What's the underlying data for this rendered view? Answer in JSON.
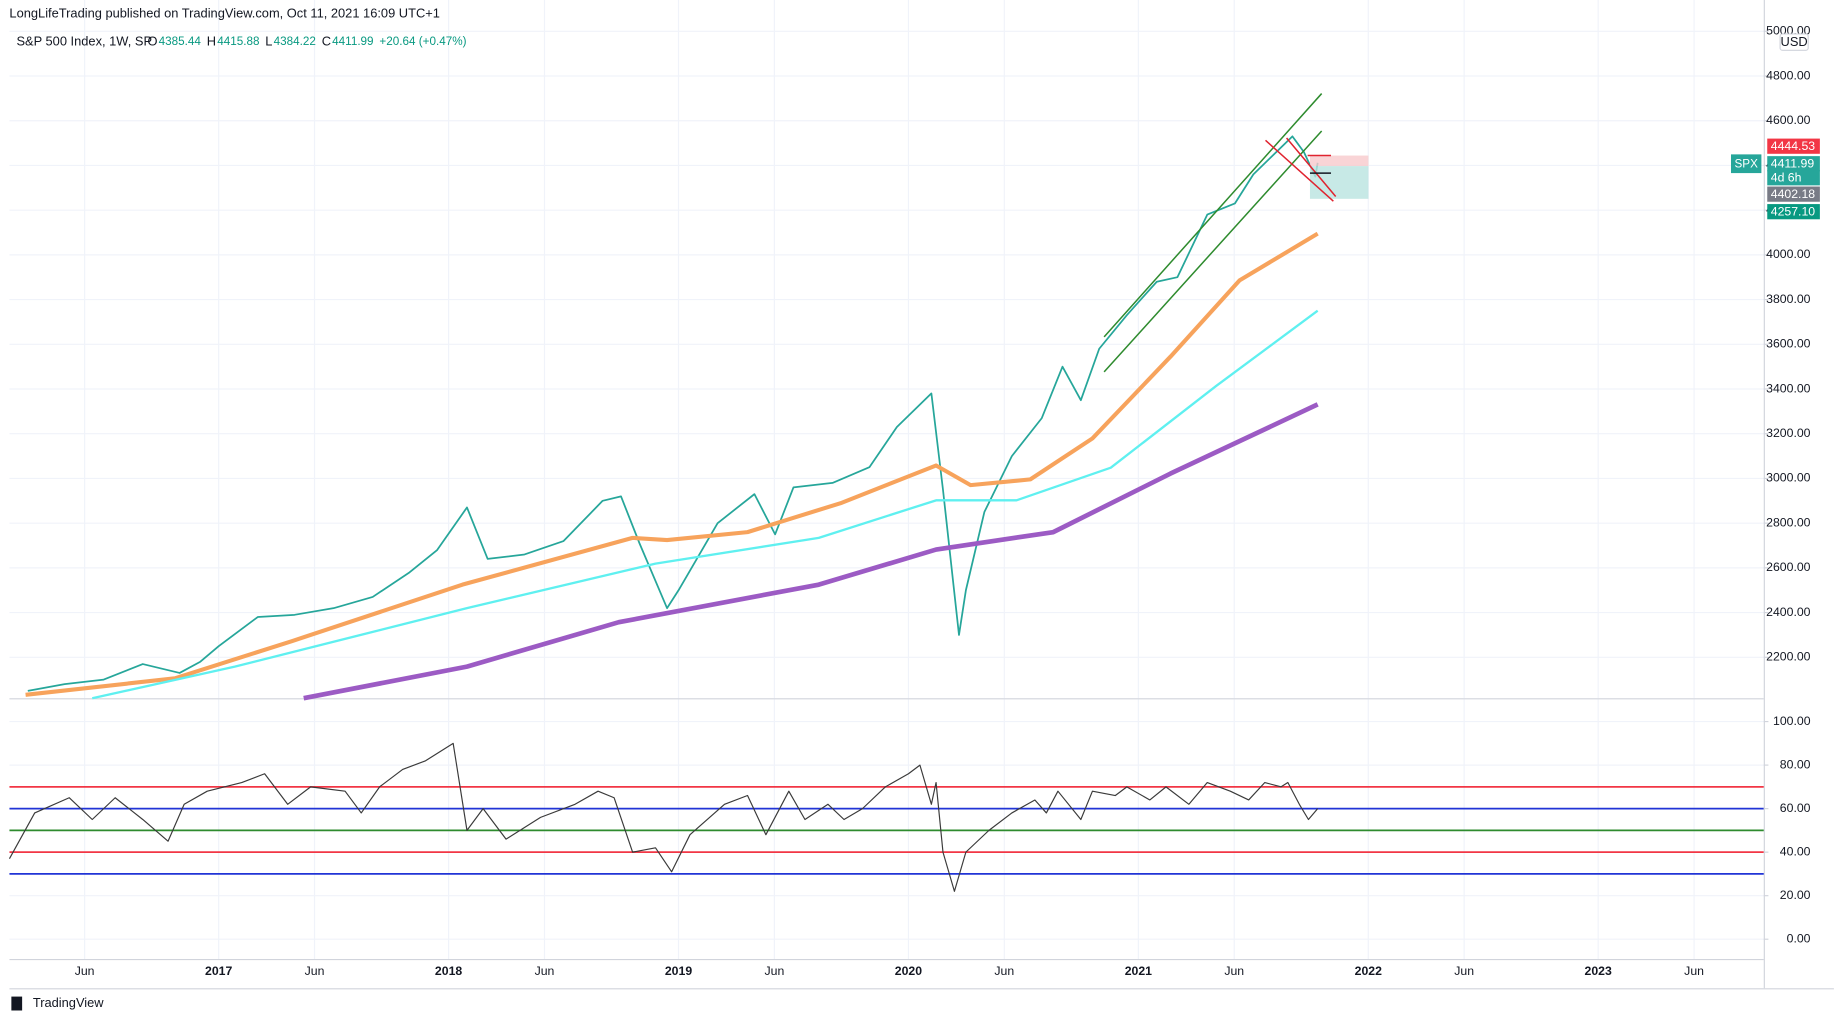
{
  "header": {
    "publisher": "LongLifeTrading published on TradingView.com, Oct 11, 2021 16:09 UTC+1",
    "symbol": "S&P 500 Index, 1W, SP",
    "ohlc": [
      {
        "key": "O",
        "value": "4385.44"
      },
      {
        "key": "H",
        "value": "4415.88"
      },
      {
        "key": "L",
        "value": "4384.22"
      },
      {
        "key": "C",
        "value": "4411.99"
      }
    ],
    "change": "+20.64 (+0.47%)"
  },
  "currency": "USD",
  "footer": "TradingView",
  "symbol_tag": "SPX",
  "price_labels": [
    {
      "text": "4444.53",
      "color": "#f23645"
    },
    {
      "text": "4411.99",
      "color": "#26a69a"
    },
    {
      "text": "4d 6h",
      "color": "#26a69a"
    },
    {
      "text": "4402.18",
      "color": "#787b86"
    },
    {
      "text": "4257.10",
      "color": "#089981"
    }
  ],
  "chart_data": [
    {
      "type": "line",
      "xlim": [
        2016.09,
        2023.72
      ],
      "ylim": [
        2017,
        5140
      ],
      "grid": true,
      "yticks": [
        {
          "value": 2200,
          "label": "2200.00"
        },
        {
          "value": 2400,
          "label": "2400.00"
        },
        {
          "value": 2600,
          "label": "2600.00"
        },
        {
          "value": 2800,
          "label": "2800.00"
        },
        {
          "value": 3000,
          "label": "3000.00"
        },
        {
          "value": 3200,
          "label": "3200.00"
        },
        {
          "value": 3400,
          "label": "3400.00"
        },
        {
          "value": 3600,
          "label": "3600.00"
        },
        {
          "value": 3800,
          "label": "3800.00"
        },
        {
          "value": 4000,
          "label": "4000.00"
        },
        {
          "value": 4200,
          "label": "4200.00"
        },
        {
          "value": 4400,
          "label": "4400.00"
        },
        {
          "value": 4600,
          "label": "4600.00"
        },
        {
          "value": 4800,
          "label": "4800.00"
        },
        {
          "value": 5000,
          "label": "5000.00"
        }
      ],
      "series": [
        {
          "color": "#26a69a",
          "width": 1.5,
          "x": [
            2016.17,
            2016.33,
            2016.5,
            2016.67,
            2016.83,
            2016.92,
            2017.0,
            2017.17,
            2017.33,
            2017.5,
            2017.67,
            2017.83,
            2017.95,
            2018.08,
            2018.17,
            2018.33,
            2018.5,
            2018.67,
            2018.75,
            2018.83,
            2018.95,
            2019.0,
            2019.17,
            2019.33,
            2019.42,
            2019.5,
            2019.67,
            2019.83,
            2019.95,
            2020.1,
            2020.15,
            2020.22,
            2020.25,
            2020.33,
            2020.45,
            2020.58,
            2020.67,
            2020.75,
            2020.83,
            2020.95,
            2021.08,
            2021.17,
            2021.3,
            2021.42,
            2021.5,
            2021.58,
            2021.67,
            2021.72,
            2021.77,
            2021.78
          ],
          "values": [
            2050,
            2080,
            2100,
            2170,
            2130,
            2180,
            2250,
            2380,
            2390,
            2420,
            2470,
            2580,
            2680,
            2870,
            2640,
            2660,
            2720,
            2900,
            2920,
            2710,
            2420,
            2500,
            2800,
            2930,
            2750,
            2960,
            2980,
            3050,
            3230,
            3380,
            2950,
            2300,
            2500,
            2850,
            3100,
            3270,
            3500,
            3350,
            3580,
            3730,
            3880,
            3900,
            4180,
            4230,
            4360,
            4440,
            4530,
            4460,
            4350,
            4412
          ]
        },
        {
          "color": "#f7a35c",
          "width": 3.5,
          "x": [
            2016.16,
            2016.81,
            2017.32,
            2018.06,
            2018.8,
            2018.95,
            2019.3,
            2019.71,
            2020.12,
            2020.27,
            2020.53,
            2020.8,
            2021.14,
            2021.44,
            2021.78
          ],
          "values": [
            2032,
            2106,
            2273,
            2525,
            2734,
            2724,
            2760,
            2891,
            3058,
            2970,
            2996,
            3179,
            3545,
            3886,
            4095
          ]
        },
        {
          "color": "#5ff0f0",
          "width": 2,
          "x": [
            2016.45,
            2017.07,
            2018.08,
            2018.9,
            2019.61,
            2020.12,
            2020.47,
            2020.88,
            2021.34,
            2021.78
          ],
          "values": [
            2017,
            2158,
            2420,
            2619,
            2734,
            2902,
            2902,
            3048,
            3415,
            3750
          ]
        },
        {
          "color": "#9c5bc4",
          "width": 4,
          "x": [
            2017.37,
            2018.08,
            2018.74,
            2019.61,
            2020.12,
            2020.63,
            2021.14,
            2021.78
          ],
          "values": [
            2017,
            2158,
            2357,
            2525,
            2682,
            2760,
            3022,
            3331
          ]
        }
      ]
    },
    {
      "type": "line",
      "xlim": [
        2016.09,
        2023.72
      ],
      "ylim": [
        -9.1,
        110.2
      ],
      "grid": true,
      "yticks": [
        {
          "value": 0,
          "label": "0.00"
        },
        {
          "value": 20,
          "label": "20.00"
        },
        {
          "value": 40,
          "label": "40.00"
        },
        {
          "value": 60,
          "label": "60.00"
        },
        {
          "value": 80,
          "label": "80.00"
        },
        {
          "value": 100,
          "label": "100.00"
        }
      ],
      "xticks": [
        {
          "value": 2016.417,
          "label": "Jun"
        },
        {
          "value": 2017,
          "label": "2017"
        },
        {
          "value": 2017.417,
          "label": "Jun"
        },
        {
          "value": 2018,
          "label": "2018"
        },
        {
          "value": 2018.417,
          "label": "Jun"
        },
        {
          "value": 2019,
          "label": "2019"
        },
        {
          "value": 2019.417,
          "label": "Jun"
        },
        {
          "value": 2020,
          "label": "2020"
        },
        {
          "value": 2020.417,
          "label": "Jun"
        },
        {
          "value": 2021,
          "label": "2021"
        },
        {
          "value": 2021.417,
          "label": "Jun"
        },
        {
          "value": 2022,
          "label": "2022"
        },
        {
          "value": 2022.417,
          "label": "Jun"
        },
        {
          "value": 2023,
          "label": "2023"
        },
        {
          "value": 2023.417,
          "label": "Jun"
        }
      ],
      "levels": [
        {
          "value": 70,
          "color": "#f23645"
        },
        {
          "value": 60,
          "color": "#2134d6"
        },
        {
          "value": 50,
          "color": "#2e8b2e"
        },
        {
          "value": 40,
          "color": "#f23645"
        },
        {
          "value": 30,
          "color": "#2134d6"
        }
      ],
      "series": [
        {
          "color": "#3a3a3a",
          "width": 1,
          "x": [
            2016.09,
            2016.2,
            2016.35,
            2016.45,
            2016.55,
            2016.67,
            2016.78,
            2016.85,
            2016.95,
            2017.1,
            2017.2,
            2017.3,
            2017.4,
            2017.55,
            2017.62,
            2017.7,
            2017.8,
            2017.9,
            2018.02,
            2018.08,
            2018.15,
            2018.25,
            2018.4,
            2018.55,
            2018.65,
            2018.72,
            2018.8,
            2018.9,
            2018.97,
            2019.05,
            2019.2,
            2019.3,
            2019.38,
            2019.48,
            2019.55,
            2019.65,
            2019.72,
            2019.8,
            2019.9,
            2020.0,
            2020.05,
            2020.1,
            2020.12,
            2020.15,
            2020.2,
            2020.25,
            2020.35,
            2020.45,
            2020.55,
            2020.6,
            2020.65,
            2020.75,
            2020.8,
            2020.9,
            2020.95,
            2021.05,
            2021.12,
            2021.22,
            2021.3,
            2021.4,
            2021.48,
            2021.55,
            2021.62,
            2021.65,
            2021.7,
            2021.74,
            2021.78
          ],
          "values": [
            37,
            58,
            65,
            55,
            65,
            55,
            45,
            62,
            68,
            72,
            76,
            62,
            70,
            68,
            58,
            70,
            78,
            82,
            90,
            50,
            60,
            46,
            56,
            62,
            68,
            65,
            40,
            42,
            31,
            48,
            62,
            66,
            48,
            68,
            55,
            62,
            55,
            60,
            70,
            76,
            80,
            62,
            72,
            40,
            22,
            40,
            50,
            58,
            64,
            58,
            68,
            55,
            68,
            66,
            70,
            64,
            70,
            62,
            72,
            68,
            64,
            72,
            70,
            72,
            62,
            55,
            60
          ]
        }
      ]
    }
  ]
}
